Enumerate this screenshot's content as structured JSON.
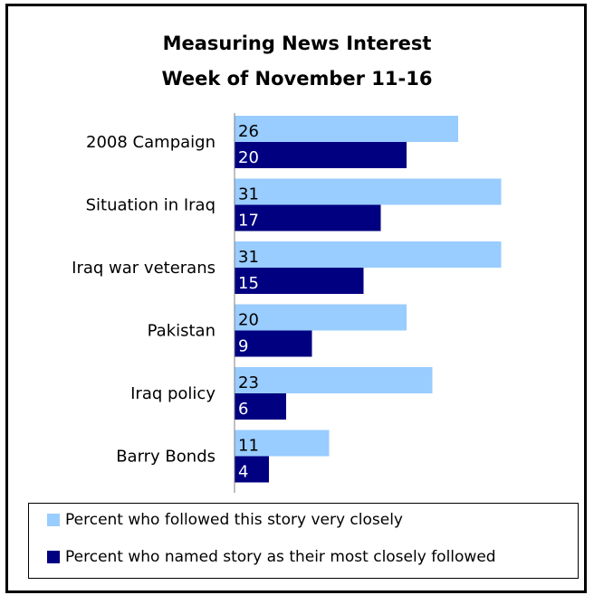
{
  "colors": {
    "very_closely": "#99ccff",
    "most_followed": "#000080"
  },
  "chart_data": {
    "type": "bar",
    "orientation": "horizontal",
    "title": "Measuring News Interest",
    "subtitle": "Week of November 11-16",
    "categories": [
      "2008 Campaign",
      "Situation in Iraq",
      "Iraq war veterans",
      "Pakistan",
      "Iraq policy",
      "Barry Bonds"
    ],
    "series": [
      {
        "name": "Percent who followed this story very closely",
        "values": [
          26,
          31,
          31,
          20,
          23,
          11
        ]
      },
      {
        "name": "Percent who named story as their most closely followed",
        "values": [
          20,
          17,
          15,
          9,
          6,
          4
        ]
      }
    ],
    "xlim": [
      0,
      33
    ],
    "grid": false,
    "legend_position": "bottom"
  }
}
